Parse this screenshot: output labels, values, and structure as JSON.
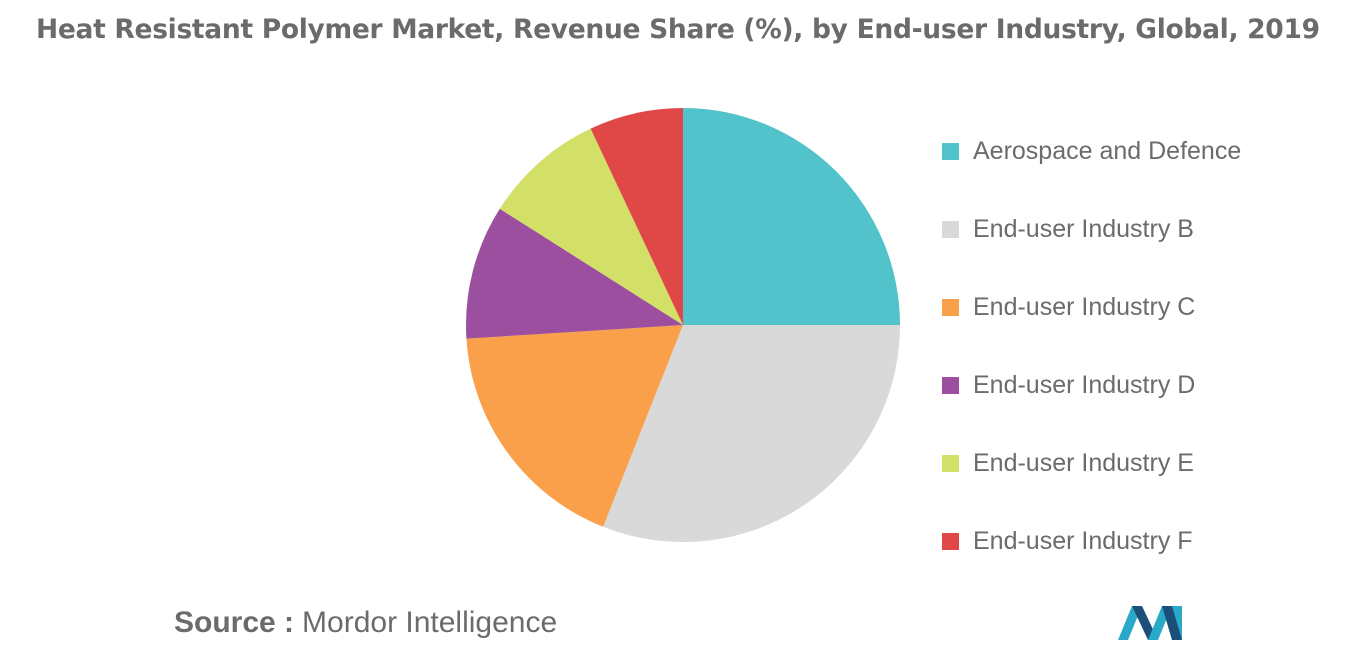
{
  "title": "Heat Resistant Polymer Market, Revenue Share (%), by End-user Industry, Global, 2019",
  "source": {
    "label": "Source :",
    "value": "Mordor Intelligence"
  },
  "logo": {
    "icon": "mordor-intelligence-logo",
    "colors": [
      "#2aa8c7",
      "#1b4f7a"
    ]
  },
  "chart_data": {
    "type": "pie",
    "title": "Heat Resistant Polymer Market, Revenue Share (%), by End-user Industry, Global, 2019",
    "start": "12 o'clock, clockwise",
    "legend_position": "right",
    "slices": [
      {
        "label": "Aerospace and Defence",
        "value": 25,
        "color": "#52c3ca"
      },
      {
        "label": "End-user Industry B",
        "value": 31,
        "color": "#d9d9d9"
      },
      {
        "label": "End-user Industry C",
        "value": 18,
        "color": "#fba04a"
      },
      {
        "label": "End-user Industry D",
        "value": 10,
        "color": "#9b4f9e"
      },
      {
        "label": "End-user Industry E",
        "value": 9,
        "color": "#d2e068"
      },
      {
        "label": "End-user Industry F",
        "value": 7,
        "color": "#e04848"
      }
    ]
  }
}
